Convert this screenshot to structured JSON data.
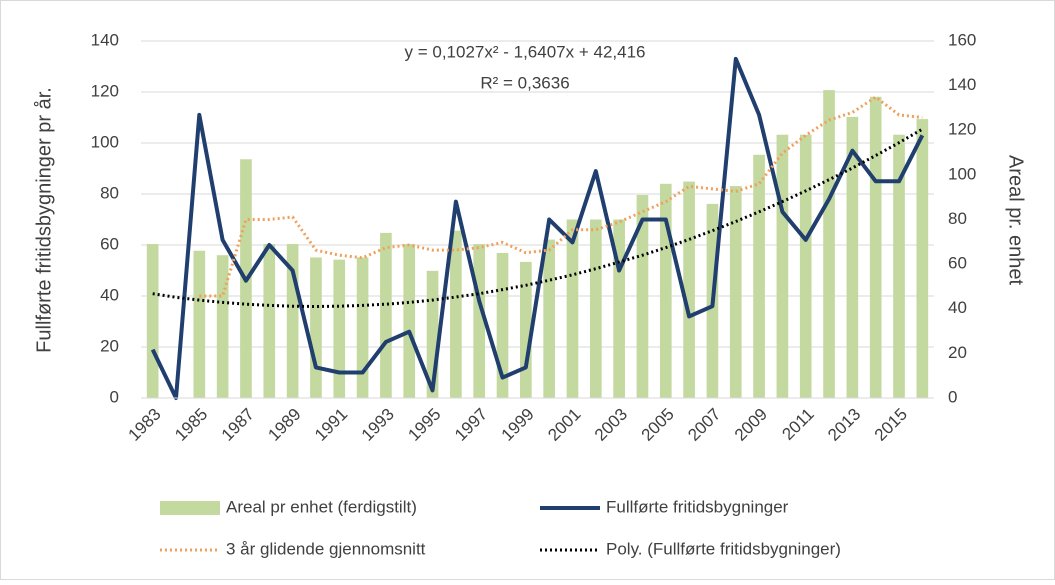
{
  "chart_data": {
    "type": "combo",
    "y_label": "Fullførte fritidsbygninger pr år.",
    "y2_label": "Areal pr. enhet",
    "annotations": [
      "y = 0,1027x² - 1,6407x + 42,416",
      "R² = 0,3636"
    ],
    "categories": [
      "1983",
      null,
      "1985",
      null,
      "1987",
      null,
      "1989",
      null,
      "1991",
      null,
      "1993",
      null,
      "1995",
      null,
      "1997",
      null,
      "1999",
      null,
      "2001",
      null,
      "2003",
      null,
      "2005",
      null,
      "2007",
      null,
      "2009",
      null,
      "2011",
      null,
      "2013",
      null,
      "2015",
      null
    ],
    "ylim": [
      0,
      140
    ],
    "yticks": [
      0,
      20,
      40,
      60,
      80,
      100,
      120,
      140
    ],
    "y2lim": [
      0,
      160
    ],
    "y2ticks": [
      0,
      20,
      40,
      60,
      80,
      100,
      120,
      140,
      160
    ],
    "grid": true,
    "series": [
      {
        "name": "Areal pr enhet (ferdigstilt)",
        "type": "bar",
        "axis": "y2",
        "color": "#c4d99f",
        "values": [
          69,
          null,
          66,
          64,
          107,
          69,
          69,
          63,
          62,
          63,
          74,
          69,
          57,
          75,
          69,
          65,
          61,
          71,
          80,
          80,
          80,
          91,
          96,
          97,
          87,
          95,
          109,
          118,
          118,
          138,
          126,
          135,
          118,
          125
        ]
      },
      {
        "name": "Fullførte fritidsbygninger",
        "type": "line",
        "axis": "y",
        "color": "#203e6e",
        "dash": "solid",
        "values": [
          19,
          0,
          111,
          62,
          46,
          60,
          50,
          12,
          10,
          10,
          22,
          26,
          3,
          77,
          38,
          8,
          12,
          70,
          61,
          89,
          50,
          70,
          70,
          32,
          36,
          133,
          111,
          73,
          62,
          78,
          97,
          85,
          85,
          103
        ]
      },
      {
        "name": "3 år glidende gjennomsnitt",
        "type": "line",
        "axis": "y",
        "color": "#f0a05a",
        "dash": "dotted",
        "values": [
          null,
          null,
          40,
          40,
          70,
          70,
          71,
          58,
          56,
          55,
          59,
          60,
          58,
          58,
          59,
          61,
          57,
          58,
          66,
          66,
          69,
          73,
          77,
          83,
          82,
          81,
          84,
          96,
          103,
          109,
          112,
          118,
          111,
          110
        ]
      },
      {
        "name": "Poly. (Fullførte fritidsbygninger)",
        "type": "line",
        "axis": "y",
        "color": "#000000",
        "dash": "dotted",
        "values": [
          40.9,
          39.5,
          38.4,
          37.5,
          36.8,
          36.3,
          36.0,
          35.9,
          36.0,
          36.3,
          36.8,
          37.5,
          38.4,
          39.6,
          40.9,
          42.5,
          44.2,
          46.2,
          48.3,
          50.7,
          53.3,
          56.0,
          59.0,
          62.2,
          65.6,
          69.2,
          73.0,
          77.0,
          81.2,
          85.6,
          90.2,
          95.1,
          100.1,
          105.4
        ]
      }
    ]
  }
}
